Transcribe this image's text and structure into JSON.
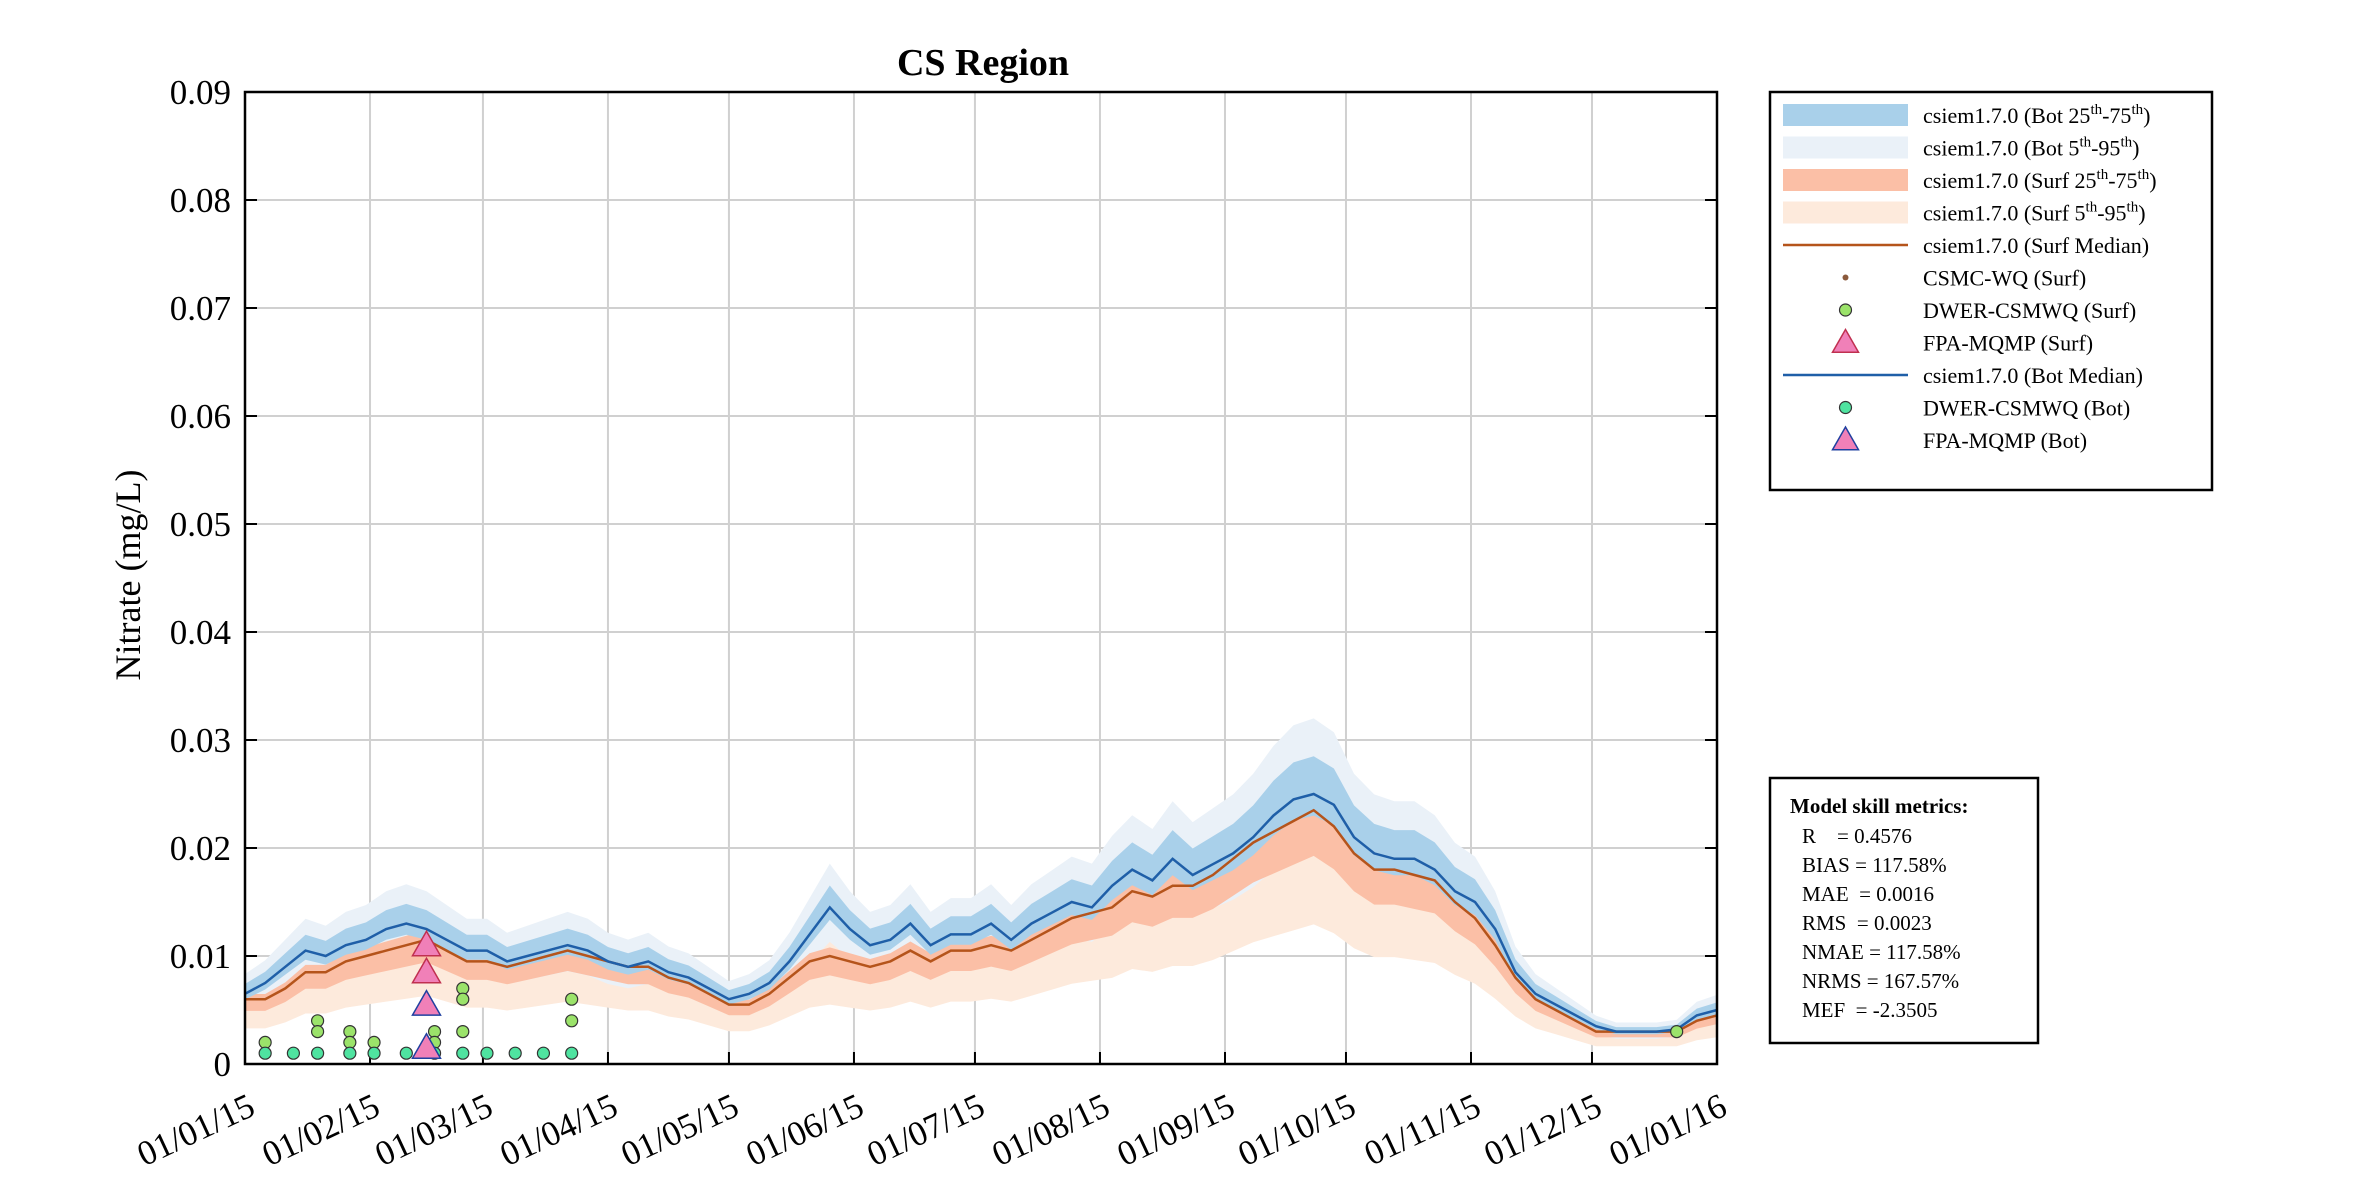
{
  "chart_data": {
    "type": "line",
    "title": "CS Region",
    "ylabel": "Nitrate (mg/L)",
    "xlabel": "",
    "ylim": [
      0,
      0.09
    ],
    "yticks": [
      0,
      0.01,
      0.02,
      0.03,
      0.04,
      0.05,
      0.06,
      0.07,
      0.08,
      0.09
    ],
    "ytick_labels": [
      "0",
      "0.01",
      "0.02",
      "0.03",
      "0.04",
      "0.05",
      "0.06",
      "0.07",
      "0.08",
      "0.09"
    ],
    "xlim_days": [
      0,
      365
    ],
    "xtick_days": [
      0,
      31,
      59,
      90,
      120,
      151,
      181,
      212,
      243,
      273,
      304,
      334,
      365
    ],
    "xtick_labels": [
      "01/01/15",
      "01/02/15",
      "01/03/15",
      "01/04/15",
      "01/05/15",
      "01/06/15",
      "01/07/15",
      "01/08/15",
      "01/09/15",
      "01/10/15",
      "01/11/15",
      "01/12/15",
      "01/01/16"
    ],
    "grid": true,
    "series": [
      {
        "name": "csiem1.7.0 (Bot Median)",
        "kind": "line",
        "color": "#1f5fa8",
        "x": [
          0,
          5,
          10,
          15,
          20,
          25,
          30,
          35,
          40,
          45,
          50,
          55,
          60,
          65,
          70,
          75,
          80,
          85,
          90,
          95,
          100,
          105,
          110,
          115,
          120,
          125,
          130,
          135,
          140,
          145,
          150,
          155,
          160,
          165,
          170,
          175,
          180,
          185,
          190,
          195,
          200,
          205,
          210,
          215,
          220,
          225,
          230,
          235,
          240,
          245,
          250,
          255,
          260,
          265,
          270,
          275,
          280,
          285,
          290,
          295,
          300,
          305,
          310,
          315,
          320,
          325,
          330,
          335,
          340,
          345,
          350,
          355,
          360,
          365
        ],
        "values": [
          0.0065,
          0.0075,
          0.009,
          0.0105,
          0.01,
          0.011,
          0.0115,
          0.0125,
          0.013,
          0.0125,
          0.0115,
          0.0105,
          0.0105,
          0.0095,
          0.01,
          0.0105,
          0.011,
          0.0105,
          0.0095,
          0.009,
          0.0095,
          0.0085,
          0.008,
          0.007,
          0.006,
          0.0065,
          0.0075,
          0.0095,
          0.012,
          0.0145,
          0.0125,
          0.011,
          0.0115,
          0.013,
          0.011,
          0.012,
          0.012,
          0.013,
          0.0115,
          0.013,
          0.014,
          0.015,
          0.0145,
          0.0165,
          0.018,
          0.017,
          0.019,
          0.0175,
          0.0185,
          0.0195,
          0.021,
          0.023,
          0.0245,
          0.025,
          0.024,
          0.021,
          0.0195,
          0.019,
          0.019,
          0.018,
          0.016,
          0.015,
          0.0125,
          0.0085,
          0.0065,
          0.0055,
          0.0045,
          0.0035,
          0.003,
          0.003,
          0.003,
          0.0032,
          0.0045,
          0.005
        ]
      },
      {
        "name": "csiem1.7.0 (Surf Median)",
        "kind": "line",
        "color": "#b5541b",
        "x": [
          0,
          5,
          10,
          15,
          20,
          25,
          30,
          35,
          40,
          45,
          50,
          55,
          60,
          65,
          70,
          75,
          80,
          85,
          90,
          95,
          100,
          105,
          110,
          115,
          120,
          125,
          130,
          135,
          140,
          145,
          150,
          155,
          160,
          165,
          170,
          175,
          180,
          185,
          190,
          195,
          200,
          205,
          210,
          215,
          220,
          225,
          230,
          235,
          240,
          245,
          250,
          255,
          260,
          265,
          270,
          275,
          280,
          285,
          290,
          295,
          300,
          305,
          310,
          315,
          320,
          325,
          330,
          335,
          340,
          345,
          350,
          355,
          360,
          365
        ],
        "values": [
          0.006,
          0.006,
          0.007,
          0.0085,
          0.0085,
          0.0095,
          0.01,
          0.0105,
          0.011,
          0.0115,
          0.0105,
          0.0095,
          0.0095,
          0.009,
          0.0095,
          0.01,
          0.0105,
          0.01,
          0.0095,
          0.009,
          0.009,
          0.008,
          0.0075,
          0.0065,
          0.0055,
          0.0055,
          0.0065,
          0.008,
          0.0095,
          0.01,
          0.0095,
          0.009,
          0.0095,
          0.0105,
          0.0095,
          0.0105,
          0.0105,
          0.011,
          0.0105,
          0.0115,
          0.0125,
          0.0135,
          0.014,
          0.0145,
          0.016,
          0.0155,
          0.0165,
          0.0165,
          0.0175,
          0.019,
          0.0205,
          0.0215,
          0.0225,
          0.0235,
          0.022,
          0.0195,
          0.018,
          0.018,
          0.0175,
          0.017,
          0.015,
          0.0135,
          0.011,
          0.008,
          0.006,
          0.005,
          0.004,
          0.003,
          0.003,
          0.003,
          0.003,
          0.003,
          0.004,
          0.0045
        ]
      }
    ],
    "observations": [
      {
        "name": "DWER-CSMWQ (Surf)",
        "marker": "circle",
        "color": "#9be36a",
        "points": [
          [
            5,
            0.002
          ],
          [
            18,
            0.004
          ],
          [
            18,
            0.003
          ],
          [
            26,
            0.003
          ],
          [
            26,
            0.002
          ],
          [
            32,
            0.002
          ],
          [
            47,
            0.003
          ],
          [
            47,
            0.002
          ],
          [
            54,
            0.007
          ],
          [
            54,
            0.006
          ],
          [
            54,
            0.003
          ],
          [
            81,
            0.006
          ],
          [
            81,
            0.004
          ],
          [
            355,
            0.003
          ]
        ]
      },
      {
        "name": "DWER-CSMWQ (Bot)",
        "marker": "circle",
        "color": "#4fe3a0",
        "points": [
          [
            5,
            0.001
          ],
          [
            12,
            0.001
          ],
          [
            18,
            0.001
          ],
          [
            26,
            0.001
          ],
          [
            32,
            0.001
          ],
          [
            40,
            0.001
          ],
          [
            47,
            0.001
          ],
          [
            54,
            0.001
          ],
          [
            60,
            0.001
          ],
          [
            67,
            0.001
          ],
          [
            74,
            0.001
          ],
          [
            81,
            0.001
          ]
        ]
      },
      {
        "name": "FPA-MQMP (Surf)",
        "marker": "triangle",
        "color": "#f080b8",
        "edge": "#c03050",
        "points": [
          [
            45,
            0.011
          ],
          [
            45,
            0.0085
          ]
        ]
      },
      {
        "name": "FPA-MQMP (Bot)",
        "marker": "triangle",
        "color": "#f080b8",
        "edge": "#2040a0",
        "points": [
          [
            45,
            0.0055
          ],
          [
            45,
            0.0015
          ]
        ]
      }
    ],
    "legend": {
      "placement": "outside-right-top",
      "entries": [
        {
          "label": "csiem1.7.0 (Bot 25",
          "sup": "th",
          "mid": "-75",
          "sup2": "th",
          "end": ")",
          "swatch": "band",
          "color": "#a9d0ea"
        },
        {
          "label": "csiem1.7.0 (Bot 5",
          "sup": "th",
          "mid": "-95",
          "sup2": "th",
          "end": ")",
          "swatch": "band",
          "color": "#eaf1f8"
        },
        {
          "label": "csiem1.7.0 (Surf 25",
          "sup": "th",
          "mid": "-75",
          "sup2": "th",
          "end": ")",
          "swatch": "band",
          "color": "#fbbfa6"
        },
        {
          "label": "csiem1.7.0 (Surf 5",
          "sup": "th",
          "mid": "-95",
          "sup2": "th",
          "end": ")",
          "swatch": "band",
          "color": "#fdeadc"
        },
        {
          "label": "csiem1.7.0 (Surf Median)",
          "sup": "",
          "mid": "",
          "sup2": "",
          "end": "",
          "swatch": "line",
          "color": "#b5541b"
        },
        {
          "label": "CSMC-WQ (Surf)",
          "sup": "",
          "mid": "",
          "sup2": "",
          "end": "",
          "swatch": "dot",
          "color": "#8b5a3c"
        },
        {
          "label": "DWER-CSMWQ (Surf)",
          "sup": "",
          "mid": "",
          "sup2": "",
          "end": "",
          "swatch": "circle",
          "color": "#9be36a"
        },
        {
          "label": "FPA-MQMP (Surf)",
          "sup": "",
          "mid": "",
          "sup2": "",
          "end": "",
          "swatch": "triangle",
          "color": "#f080b8"
        },
        {
          "label": "csiem1.7.0 (Bot Median)",
          "sup": "",
          "mid": "",
          "sup2": "",
          "end": "",
          "swatch": "line",
          "color": "#1f5fa8"
        },
        {
          "label": "DWER-CSMWQ (Bot)",
          "sup": "",
          "mid": "",
          "sup2": "",
          "end": "",
          "swatch": "circle",
          "color": "#4fe3a0"
        },
        {
          "label": "FPA-MQMP (Bot)",
          "sup": "",
          "mid": "",
          "sup2": "",
          "end": "",
          "swatch": "triangle-blue",
          "color": "#f080b8"
        }
      ]
    },
    "metrics": {
      "heading": "Model skill metrics:",
      "lines": [
        "R    = 0.4576",
        "BIAS = 117.58%",
        "MAE  = 0.0016",
        "RMS  = 0.0023",
        "NMAE = 117.58%",
        "NRMS = 167.57%",
        "MEF  = -2.3505"
      ]
    }
  }
}
